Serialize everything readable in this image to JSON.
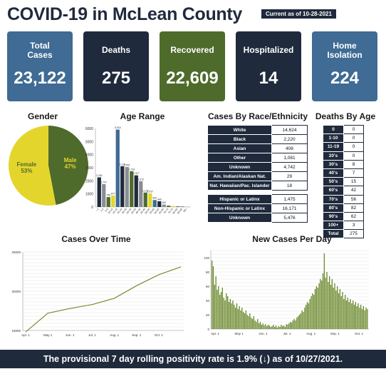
{
  "header": {
    "title": "COVID-19 in McLean County",
    "as_of": "Current as of 10-28-2021"
  },
  "cards": [
    {
      "label": "Total Cases",
      "value": "23,122",
      "color": "#3f6b94"
    },
    {
      "label": "Deaths",
      "value": "275",
      "color": "#1f2a3c"
    },
    {
      "label": "Recovered",
      "value": "22,609",
      "color": "#4e6b2c"
    },
    {
      "label": "Hospitalized",
      "value": "14",
      "color": "#1f2a3c"
    },
    {
      "label": "Home Isolation",
      "value": "224",
      "color": "#3f6b94"
    }
  ],
  "gender": {
    "title": "Gender",
    "chart_data": {
      "type": "pie",
      "categories": [
        "Female",
        "Male"
      ],
      "values": [
        53,
        47
      ],
      "labels": [
        "53%",
        "47%"
      ],
      "colors": [
        "#e4d52c",
        "#4e6b2c"
      ]
    }
  },
  "age_range": {
    "title": "Age Range",
    "chart_data": {
      "type": "bar",
      "categories": [
        "<1",
        "1-4",
        "5-9",
        "10-14",
        "15-19",
        "20-24",
        "25-29",
        "30-34",
        "35-39",
        "40-44",
        "45-49",
        "50-54",
        "55-59",
        "60-64",
        "65-69",
        "70-74",
        "75-79",
        "80-84",
        "85-89",
        "90+"
      ],
      "values": [
        2262,
        1747,
        758,
        877,
        5915,
        3116,
        3051,
        2734,
        2417,
        1972,
        1102,
        1037,
        532,
        440,
        182,
        100,
        75,
        50,
        30,
        20
      ],
      "data_labels": [
        "2,262",
        "1,747",
        "758",
        "877",
        "5,915",
        "3,116",
        "3,051",
        "2,734",
        "2,417",
        "1,972",
        "1,102",
        "1,037",
        "532",
        "440",
        "182",
        "",
        "",
        "",
        "",
        ""
      ],
      "colors": [
        "#1f2a3c",
        "#8a8d91",
        "#4e6b2c",
        "#e4d52c",
        "#3f6b94",
        "#1f2a3c",
        "#8a8d91",
        "#4e6b2c",
        "#1f2a3c",
        "#8a8d91",
        "#4e6b2c",
        "#e4d52c",
        "#3f6b94",
        "#1f2a3c",
        "#8a8d91",
        "#4e6b2c",
        "#e4d52c",
        "#3f6b94",
        "#1f2a3c",
        "#8a8d91"
      ],
      "ylim": [
        0,
        6000
      ],
      "yticks": [
        0,
        1000,
        2000,
        3000,
        4000,
        5000,
        6000
      ]
    }
  },
  "race": {
    "title": "Cases By Race/Ethnicity",
    "rows": [
      {
        "label": "White",
        "value": "14,624"
      },
      {
        "label": "Black",
        "value": "2,220"
      },
      {
        "label": "Asian",
        "value": "408"
      },
      {
        "label": "Other",
        "value": "1,081"
      },
      {
        "label": "Unknown",
        "value": "4,742"
      },
      {
        "label": "Am. Indian/Alaskan Nat.",
        "value": "29"
      },
      {
        "label": "Nat. Hawaiian/Pac. Islander",
        "value": "18"
      }
    ],
    "rows2": [
      {
        "label": "Hispanic or Latinx",
        "value": "1,475"
      },
      {
        "label": "Non-Hispanic or Latinx",
        "value": "16,171"
      },
      {
        "label": "Unknown",
        "value": "5,476"
      }
    ]
  },
  "deaths_by_age": {
    "title": "Deaths By Age",
    "rows": [
      {
        "label": "0",
        "value": "0"
      },
      {
        "label": "1-10",
        "value": "0"
      },
      {
        "label": "11-19",
        "value": "0"
      },
      {
        "label": "20's",
        "value": "0"
      },
      {
        "label": "30's",
        "value": "8"
      },
      {
        "label": "40's",
        "value": "7"
      },
      {
        "label": "50's",
        "value": "15"
      },
      {
        "label": "60's",
        "value": "42"
      },
      {
        "label": "70's",
        "value": "56"
      },
      {
        "label": "80's",
        "value": "82"
      },
      {
        "label": "90's",
        "value": "62"
      },
      {
        "label": "100+",
        "value": "3"
      },
      {
        "label": "Total",
        "value": "275"
      }
    ]
  },
  "cases_over_time": {
    "title": "Cases Over Time",
    "chart_data": {
      "type": "line",
      "x": [
        "Apr. 1",
        "May 1",
        "Jun. 1",
        "Jul. 1",
        "Aug. 1",
        "Sep. 1",
        "Oct. 1",
        "Oct. 27"
      ],
      "values": [
        14800,
        17200,
        17800,
        18300,
        19100,
        20700,
        22100,
        23100
      ],
      "xticks": [
        "Apr. 1",
        "May 1",
        "Jun. 1",
        "Jul. 1",
        "Aug. 1",
        "Sep. 1",
        "Oct. 1"
      ],
      "yticks": [
        15000,
        20000,
        25000
      ],
      "ytick_labels": [
        "15000",
        "20000",
        "25000"
      ],
      "ylim": [
        15000,
        25000
      ],
      "color": "#7a8a2c"
    }
  },
  "new_cases": {
    "title": "New Cases Per Day",
    "chart_data": {
      "type": "bar",
      "xticks": [
        "Apr. 1",
        "May 1",
        "Jun. 1",
        "Jul. 1",
        "Aug. 1",
        "Sep. 1",
        "Oct. 1"
      ],
      "yticks": [
        0,
        20,
        40,
        60,
        80,
        100
      ],
      "ylim": [
        0,
        110
      ],
      "values": [
        96,
        88,
        62,
        74,
        55,
        60,
        48,
        52,
        58,
        44,
        40,
        50,
        46,
        38,
        42,
        36,
        40,
        34,
        30,
        36,
        28,
        32,
        26,
        30,
        24,
        22,
        26,
        20,
        18,
        22,
        16,
        14,
        18,
        12,
        10,
        14,
        8,
        10,
        6,
        8,
        5,
        7,
        4,
        6,
        5,
        3,
        4,
        6,
        3,
        5,
        2,
        4,
        3,
        6,
        4,
        5,
        3,
        7,
        6,
        8,
        10,
        9,
        12,
        14,
        12,
        16,
        18,
        20,
        22,
        26,
        24,
        30,
        34,
        38,
        36,
        42,
        46,
        50,
        48,
        56,
        60,
        58,
        64,
        70,
        68,
        78,
        106,
        72,
        80,
        66,
        74,
        62,
        70,
        58,
        64,
        54,
        60,
        50,
        56,
        46,
        52,
        42,
        48,
        40,
        44,
        38,
        42,
        36,
        40,
        34,
        38,
        32,
        36,
        30,
        34,
        28,
        32,
        26,
        30,
        28
      ],
      "color": "#6c8a2e"
    }
  },
  "footer": {
    "text": "The provisional 7 day rolling positivity rate is 1.9% (↓) as of 10/27/2021."
  }
}
